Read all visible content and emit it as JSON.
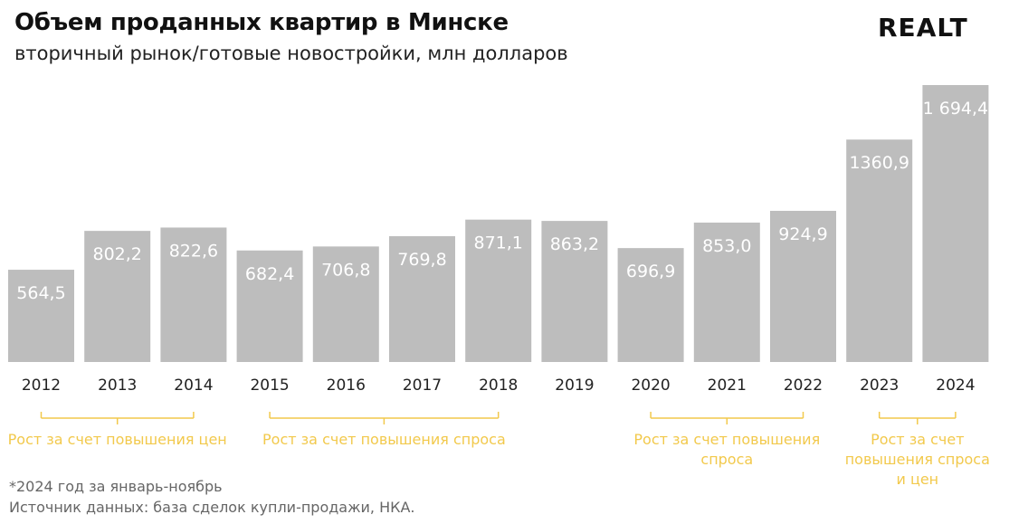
{
  "header": {
    "title": "Объем проданных квартир в Минске",
    "subtitle": "вторичный рынок/готовые новостройки, млн долларов",
    "logo": "REALT"
  },
  "footer": {
    "footnote": "*2024 год за январь-ноябрь",
    "source": "Источник данных: база сделок купли-продажи, НКА."
  },
  "colors": {
    "bar": "#bdbdbd",
    "bar_label": "#ffffff",
    "annotation": "#f2c94c",
    "tick": "#222222"
  },
  "chart_data": {
    "type": "bar",
    "categories": [
      "2012",
      "2013",
      "2014",
      "2015",
      "2016",
      "2017",
      "2018",
      "2019",
      "2020",
      "2021",
      "2022",
      "2023",
      "2024"
    ],
    "values": [
      564.5,
      802.2,
      822.6,
      682.4,
      706.8,
      769.8,
      871.1,
      863.2,
      696.9,
      853.0,
      924.9,
      1360.9,
      1694.4
    ],
    "value_labels": [
      "564,5",
      "802,2",
      "822,6",
      "682,4",
      "706,8",
      "769,8",
      "871,1",
      "863,2",
      "696,9",
      "853,0",
      "924,9",
      "1360,9",
      "1 694,4"
    ],
    "ylim": [
      0,
      1694.4
    ],
    "grid": false,
    "annotations": [
      {
        "text": [
          "Рост за счет повышения цен"
        ],
        "from": "2012",
        "to": "2014"
      },
      {
        "text": [
          "Рост за счет повышения спроса"
        ],
        "from": "2015",
        "to": "2018"
      },
      {
        "text": [
          "Рост за счет повышения",
          "спроса"
        ],
        "from": "2020",
        "to": "2022"
      },
      {
        "text": [
          "Рост за счет",
          "повышения спроса",
          "и цен"
        ],
        "from": "2023",
        "to": "2024"
      }
    ]
  }
}
